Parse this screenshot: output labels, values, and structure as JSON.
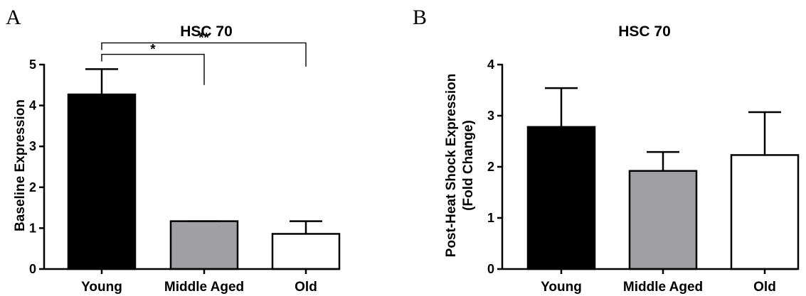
{
  "chart_data": [
    {
      "type": "bar",
      "panel": "A",
      "title": "HSC 70",
      "xlabel": "",
      "ylabel": "Baseline Expression",
      "ylim": [
        0,
        5
      ],
      "yticks": [
        "0",
        "1",
        "2",
        "3",
        "4",
        "5"
      ],
      "categories": [
        "Young",
        "Middle Aged",
        "Old"
      ],
      "values": [
        4.27,
        1.17,
        0.86
      ],
      "errors": [
        0.62,
        0.0,
        0.31
      ],
      "colors": [
        "#000000",
        "#a0a0a4",
        "#ffffff"
      ],
      "significance": [
        {
          "from": 0,
          "to": 1,
          "label": "*",
          "y": 5.25
        },
        {
          "from": 0,
          "to": 2,
          "label": "**",
          "y": 5.53
        }
      ]
    },
    {
      "type": "bar",
      "panel": "B",
      "title": "HSC 70",
      "xlabel": "",
      "ylabel": "Post-Heat Shock Expression",
      "ylabel2": "(Fold Change)",
      "ylim": [
        0,
        4
      ],
      "yticks": [
        "0",
        "1",
        "2",
        "3",
        "4"
      ],
      "categories": [
        "Young",
        "Middle Aged",
        "Old"
      ],
      "values": [
        2.78,
        1.92,
        2.23
      ],
      "errors": [
        0.76,
        0.37,
        0.84
      ],
      "colors": [
        "#000000",
        "#a0a0a4",
        "#ffffff"
      ]
    }
  ]
}
